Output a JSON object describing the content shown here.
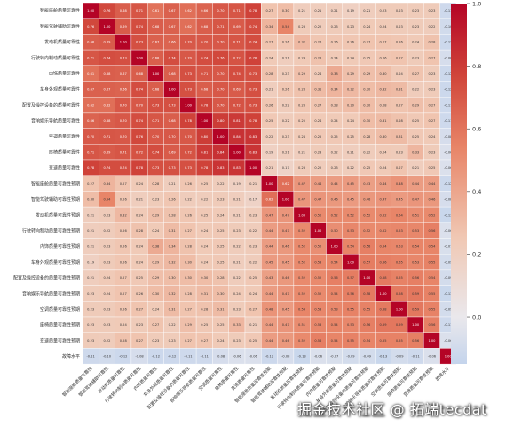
{
  "watermark": "掘金技术社区 @ 拓端tecdat",
  "colors": {
    "low": "#3b4cc0",
    "mid": "#f7f7f7",
    "high": "#b40426"
  },
  "chart_data": {
    "type": "heatmap",
    "title": "",
    "labels": [
      "智能座舱质量可靠性",
      "智能驾驶辅助可靠性",
      "发动机质量可靠性",
      "行驶转向制动质量可靠性",
      "内饰质量可靠性",
      "车身外观质量可靠性",
      "配置及操控设备的质量可靠性",
      "音响娱乐导航质量可靠性",
      "空调质量可靠性",
      "座椅质量可靠性",
      "变速质量可靠性",
      "智能座舱质量可靠性预期",
      "智能驾驶辅助可靠性预期",
      "发动机质量可靠性预期",
      "行驶转向制动质量可靠性预期",
      "内饰质量可靠性预期",
      "车身外观质量可靠性预期",
      "配置及操控设备的质量可靠性预期",
      "音响娱乐导航质量可靠性预期",
      "空调质量可靠性预期",
      "座椅质量可靠性预期",
      "变速质量可靠性预期",
      "故障水平"
    ],
    "colorbar": {
      "vmin": -0.15,
      "vmax": 1.0,
      "ticks": [
        0.0,
        0.2,
        0.4,
        0.6,
        0.8,
        1.0
      ]
    },
    "matrix": [
      [
        1.0,
        0.76,
        0.68,
        0.71,
        0.61,
        0.67,
        0.62,
        0.66,
        0.7,
        0.71,
        0.78,
        0.27,
        0.3,
        0.21,
        0.21,
        0.21,
        0.19,
        0.21,
        0.23,
        0.23,
        0.23,
        0.23,
        -0.11
      ],
      [
        0.76,
        1.0,
        0.69,
        0.74,
        0.68,
        0.67,
        0.62,
        0.68,
        0.71,
        0.69,
        0.74,
        0.34,
        0.54,
        0.23,
        0.22,
        0.23,
        0.23,
        0.24,
        0.24,
        0.23,
        0.23,
        0.22,
        -0.1
      ],
      [
        0.68,
        0.69,
        1.0,
        0.73,
        0.67,
        0.66,
        0.7,
        0.7,
        0.7,
        0.71,
        0.74,
        0.27,
        0.26,
        0.32,
        0.26,
        0.26,
        0.26,
        0.27,
        0.27,
        0.26,
        0.24,
        0.28,
        -0.12
      ],
      [
        0.71,
        0.74,
        0.73,
        1.0,
        0.68,
        0.74,
        0.7,
        0.74,
        0.76,
        0.72,
        0.78,
        0.24,
        0.21,
        0.24,
        0.28,
        0.24,
        0.24,
        0.25,
        0.26,
        0.27,
        0.23,
        0.27,
        -0.08
      ],
      [
        0.61,
        0.68,
        0.67,
        0.68,
        1.0,
        0.68,
        0.73,
        0.71,
        0.7,
        0.74,
        0.73,
        0.28,
        0.23,
        0.29,
        0.24,
        0.38,
        0.29,
        0.29,
        0.3,
        0.24,
        0.27,
        0.23,
        -0.12
      ],
      [
        0.67,
        0.67,
        0.66,
        0.74,
        0.68,
        1.0,
        0.73,
        0.68,
        0.7,
        0.69,
        0.73,
        0.21,
        0.26,
        0.28,
        0.31,
        0.34,
        0.32,
        0.3,
        0.32,
        0.31,
        0.22,
        0.23,
        -0.12
      ],
      [
        0.62,
        0.62,
        0.7,
        0.7,
        0.73,
        0.73,
        1.0,
        0.78,
        0.7,
        0.72,
        0.73,
        0.26,
        0.22,
        0.26,
        0.27,
        0.28,
        0.3,
        0.3,
        0.28,
        0.27,
        0.29,
        0.27,
        -0.11
      ],
      [
        0.66,
        0.68,
        0.7,
        0.74,
        0.71,
        0.68,
        0.78,
        1.0,
        0.8,
        0.81,
        0.78,
        0.25,
        0.22,
        0.25,
        0.24,
        0.24,
        0.24,
        0.3,
        0.31,
        0.28,
        0.25,
        0.27,
        -0.11
      ],
      [
        0.7,
        0.71,
        0.7,
        0.76,
        0.7,
        0.7,
        0.7,
        0.8,
        1.0,
        0.84,
        0.83,
        0.22,
        0.23,
        0.24,
        0.25,
        0.25,
        0.25,
        0.28,
        0.3,
        0.31,
        0.25,
        0.24,
        -0.08
      ],
      [
        0.71,
        0.69,
        0.71,
        0.72,
        0.74,
        0.69,
        0.72,
        0.81,
        0.84,
        1.0,
        0.83,
        0.19,
        0.21,
        0.21,
        0.23,
        0.22,
        0.21,
        0.22,
        0.24,
        0.23,
        0.33,
        0.23,
        -0.06
      ],
      [
        0.78,
        0.74,
        0.74,
        0.78,
        0.73,
        0.73,
        0.73,
        0.78,
        0.83,
        0.83,
        1.0,
        0.21,
        0.17,
        0.23,
        0.22,
        0.23,
        0.22,
        0.25,
        0.24,
        0.27,
        0.21,
        0.25,
        -0.06
      ],
      [
        0.27,
        0.34,
        0.27,
        0.24,
        0.28,
        0.21,
        0.26,
        0.25,
        0.22,
        0.19,
        0.21,
        1.0,
        0.62,
        0.47,
        0.44,
        0.44,
        0.45,
        0.43,
        0.44,
        0.48,
        0.44,
        0.44,
        -0.12
      ],
      [
        0.3,
        0.54,
        0.26,
        0.21,
        0.23,
        0.26,
        0.22,
        0.22,
        0.23,
        0.21,
        0.17,
        0.62,
        1.0,
        0.47,
        0.47,
        0.46,
        0.45,
        0.46,
        0.47,
        0.45,
        0.47,
        0.46,
        -0.08
      ],
      [
        0.21,
        0.23,
        0.32,
        0.24,
        0.29,
        0.28,
        0.26,
        0.25,
        0.24,
        0.21,
        0.23,
        0.47,
        0.47,
        1.0,
        0.52,
        0.52,
        0.52,
        0.52,
        0.52,
        0.54,
        0.51,
        0.52,
        -0.13
      ],
      [
        0.21,
        0.22,
        0.26,
        0.28,
        0.24,
        0.31,
        0.27,
        0.24,
        0.25,
        0.23,
        0.22,
        0.44,
        0.47,
        0.52,
        1.0,
        0.5,
        0.53,
        0.52,
        0.52,
        0.53,
        0.53,
        0.56,
        -0.06
      ],
      [
        0.21,
        0.23,
        0.26,
        0.24,
        0.38,
        0.34,
        0.28,
        0.24,
        0.25,
        0.22,
        0.23,
        0.44,
        0.46,
        0.52,
        0.5,
        1.0,
        0.54,
        0.56,
        0.54,
        0.53,
        0.54,
        0.54,
        -0.07
      ],
      [
        0.19,
        0.23,
        0.26,
        0.24,
        0.29,
        0.32,
        0.3,
        0.24,
        0.25,
        0.21,
        0.22,
        0.45,
        0.45,
        0.52,
        0.53,
        0.54,
        1.0,
        0.57,
        0.56,
        0.55,
        0.53,
        0.55,
        -0.09
      ],
      [
        0.21,
        0.24,
        0.27,
        0.25,
        0.29,
        0.3,
        0.3,
        0.3,
        0.28,
        0.22,
        0.25,
        0.43,
        0.46,
        0.52,
        0.52,
        0.56,
        0.57,
        1.0,
        0.58,
        0.55,
        0.56,
        0.54,
        -0.09
      ],
      [
        0.23,
        0.24,
        0.27,
        0.26,
        0.3,
        0.32,
        0.28,
        0.31,
        0.3,
        0.24,
        0.24,
        0.44,
        0.47,
        0.52,
        0.52,
        0.54,
        0.56,
        0.58,
        1.0,
        0.58,
        0.59,
        0.55,
        -0.13
      ],
      [
        0.23,
        0.23,
        0.26,
        0.27,
        0.24,
        0.31,
        0.27,
        0.28,
        0.31,
        0.23,
        0.27,
        0.48,
        0.45,
        0.54,
        0.53,
        0.53,
        0.55,
        0.55,
        0.58,
        1.0,
        0.59,
        0.55,
        -0.09
      ],
      [
        0.23,
        0.23,
        0.24,
        0.23,
        0.27,
        0.22,
        0.29,
        0.25,
        0.25,
        0.33,
        0.21,
        0.44,
        0.47,
        0.51,
        0.53,
        0.54,
        0.53,
        0.56,
        0.59,
        0.59,
        1.0,
        0.56,
        -0.11
      ],
      [
        0.23,
        0.22,
        0.28,
        0.27,
        0.23,
        0.23,
        0.27,
        0.27,
        0.24,
        0.23,
        0.25,
        0.44,
        0.46,
        0.52,
        0.56,
        0.54,
        0.55,
        0.54,
        0.55,
        0.55,
        0.56,
        1.0,
        -0.06
      ],
      [
        -0.11,
        -0.1,
        -0.12,
        -0.08,
        -0.12,
        -0.12,
        -0.11,
        -0.11,
        -0.08,
        -0.06,
        -0.06,
        -0.12,
        -0.08,
        -0.13,
        -0.06,
        -0.07,
        -0.09,
        -0.09,
        -0.13,
        -0.09,
        -0.11,
        -0.06,
        1.0
      ]
    ]
  }
}
